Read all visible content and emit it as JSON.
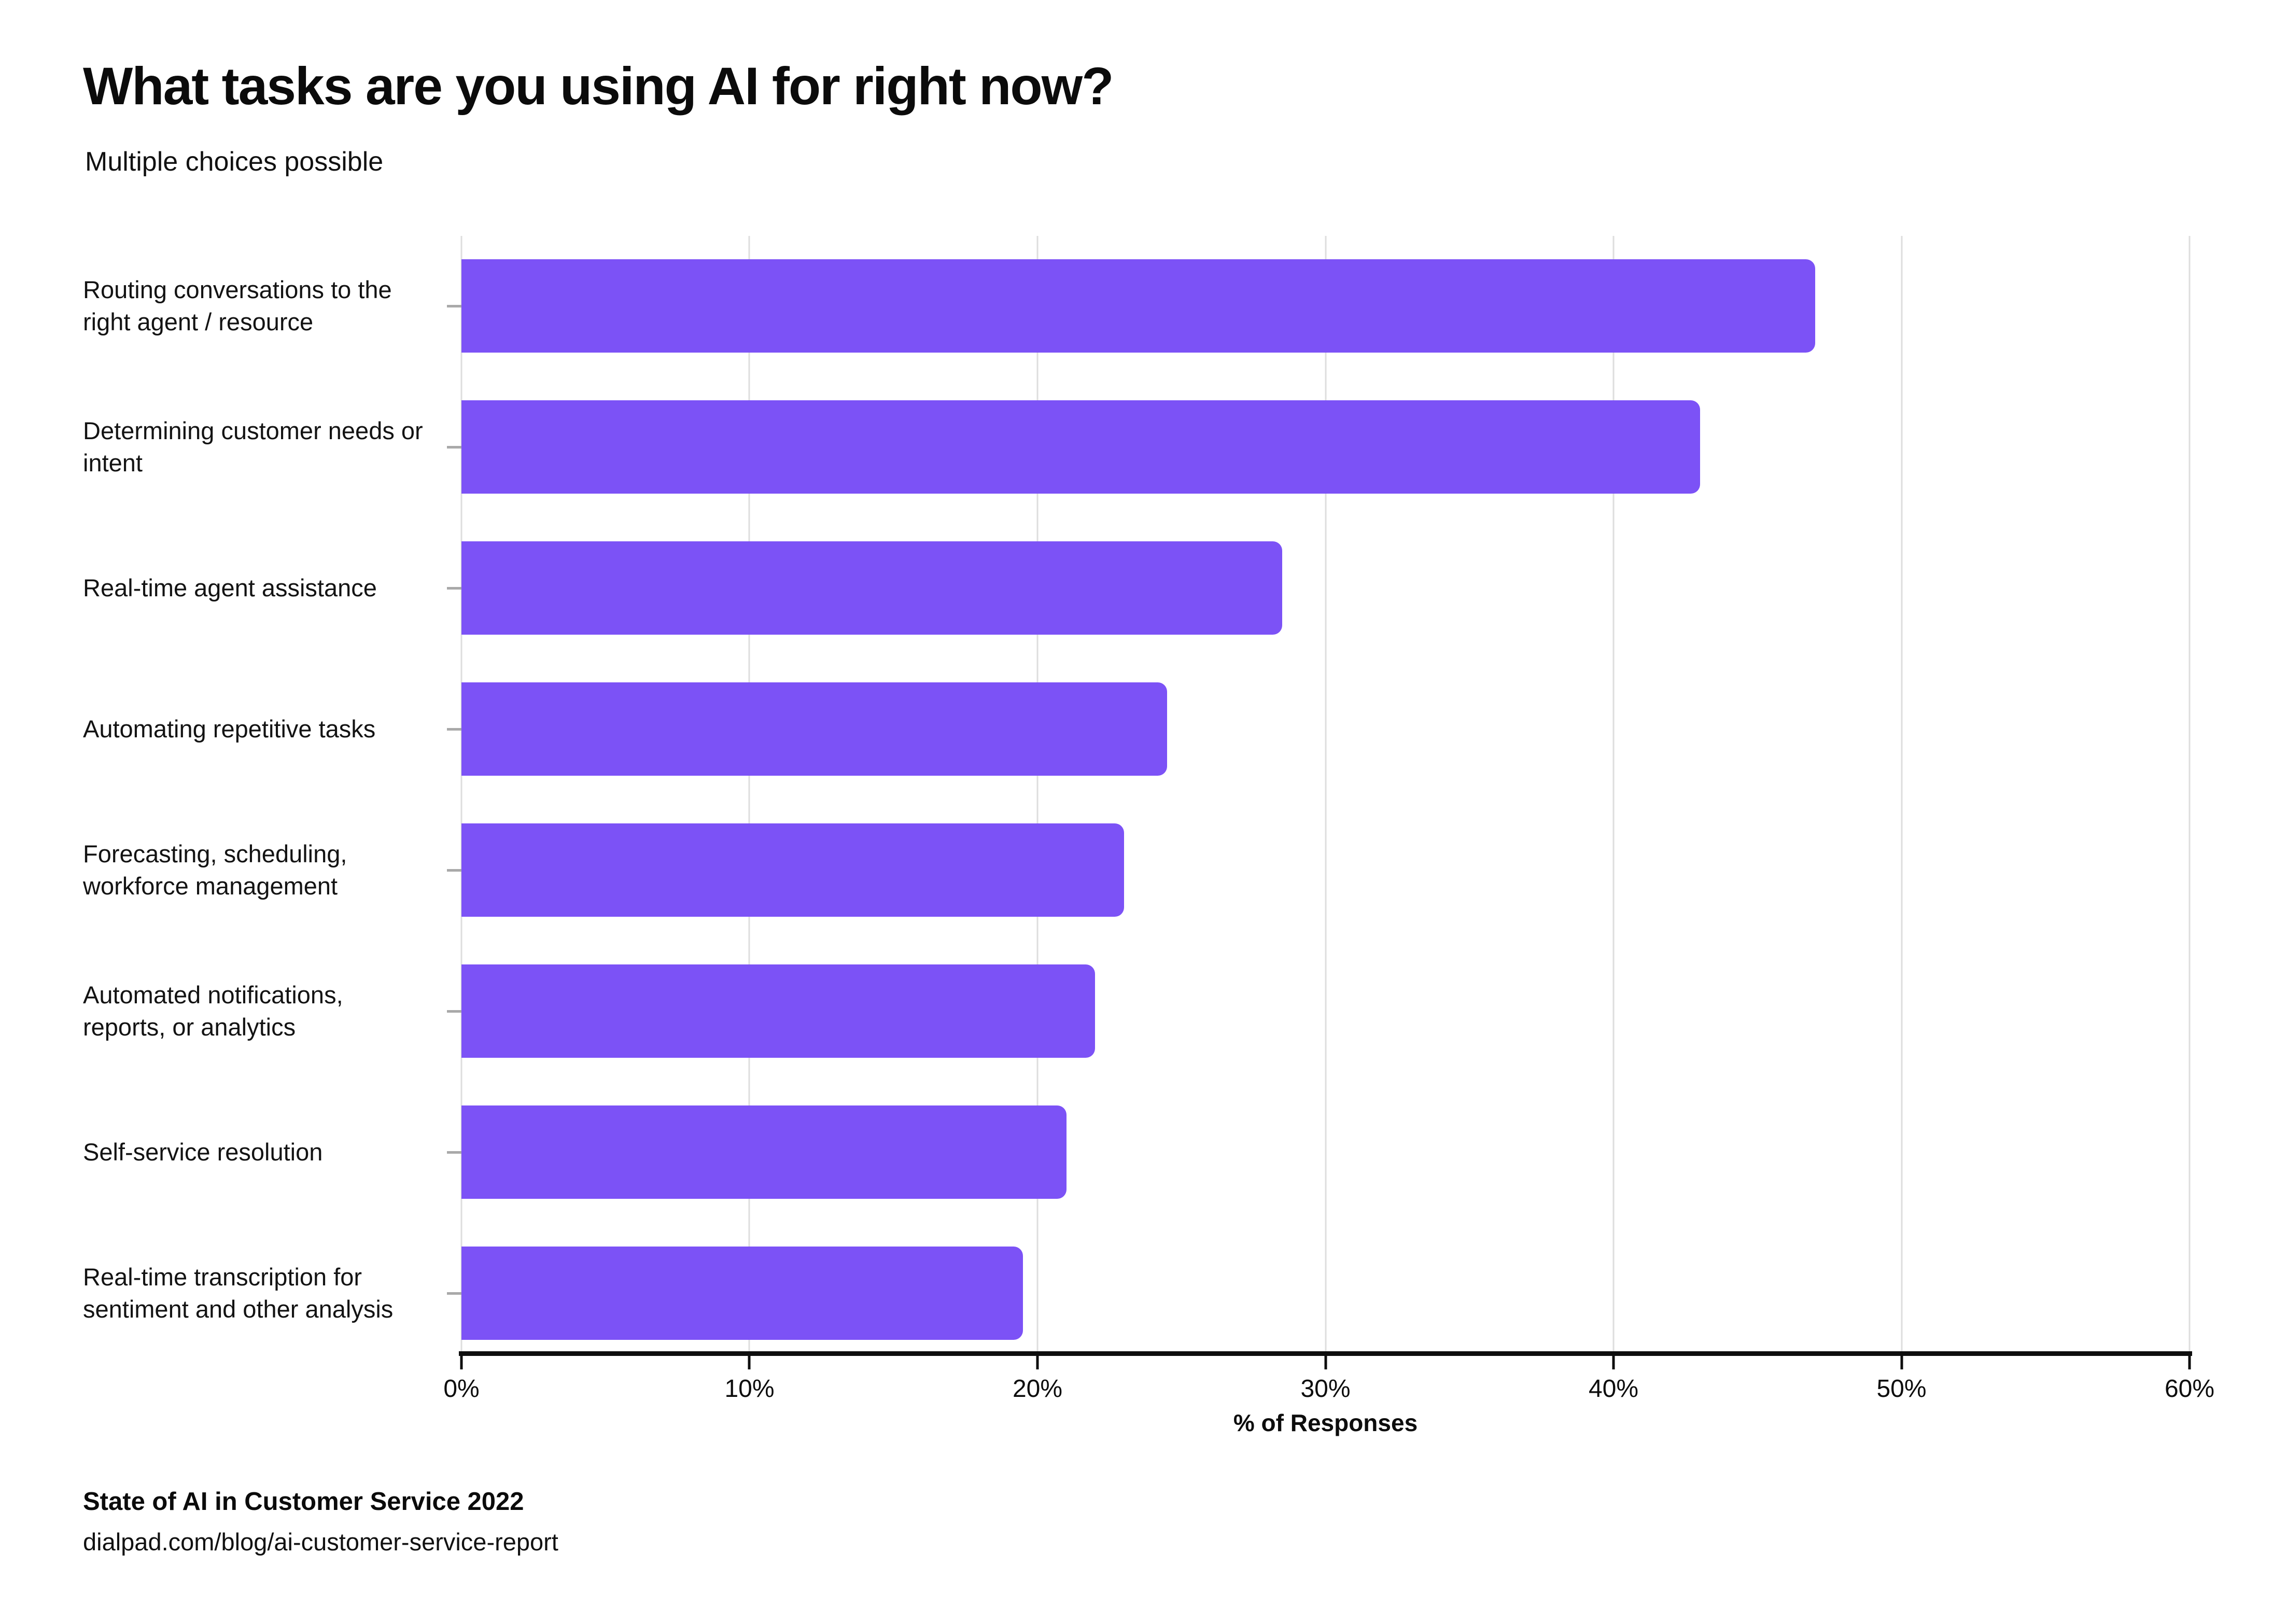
{
  "header": {
    "title": "What tasks are you using AI for right now?",
    "subtitle": "Multiple choices possible"
  },
  "chart_data": {
    "type": "bar",
    "orientation": "horizontal",
    "title": "What tasks are you using AI for right now?",
    "subtitle": "Multiple choices possible",
    "categories": [
      "Routing conversations to the right agent / resource",
      "Determining customer needs or intent",
      "Real-time agent assistance",
      "Automating repetitive tasks",
      "Forecasting, scheduling, workforce management",
      "Automated notifications, reports, or analytics",
      "Self-service resolution",
      "Real-time transcription for sentiment and other analysis"
    ],
    "values": [
      47,
      43,
      28.5,
      24.5,
      23,
      22,
      21,
      19.5
    ],
    "unit": "%",
    "xlabel": "% of Responses",
    "ylabel": "",
    "xlim": [
      0,
      60
    ],
    "xticks": [
      "0%",
      "10%",
      "20%",
      "30%",
      "40%",
      "50%",
      "60%"
    ],
    "grid": "vertical-gridlines-on",
    "legend": "none",
    "bar_color": "#7c52f6"
  },
  "footer": {
    "source": "State of AI in Customer Service 2022",
    "url": "dialpad.com/blog/ai-customer-service-report"
  },
  "colors": {
    "background": "#ffffff",
    "bar": "#7c52f6",
    "gridline": "#dedede",
    "axis": "#0e0e0e",
    "text": "#0d0d0d",
    "ytick": "#a9a9a9"
  }
}
